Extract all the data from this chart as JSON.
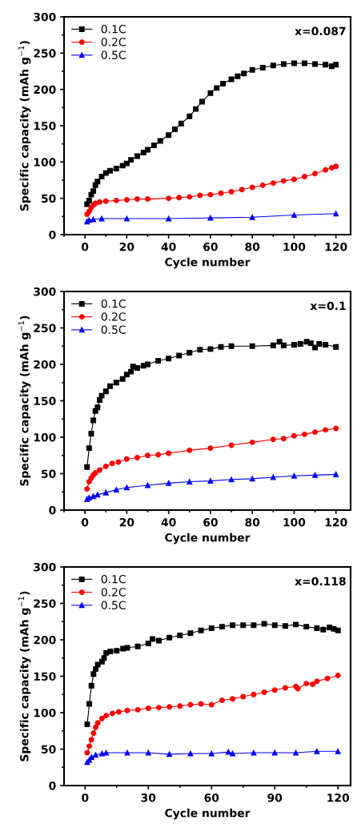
{
  "chart_data": [
    {
      "type": "line",
      "xlabel": "Cycle number",
      "ylabel": "Specific capacity (mAh g$^{−1}$)",
      "annotations": [
        "x=0.087"
      ],
      "xlim": [
        -10,
        127
      ],
      "ylim": [
        0,
        300
      ],
      "xticks": [
        0,
        20,
        40,
        60,
        80,
        100,
        120
      ],
      "yticks": [
        0,
        50,
        100,
        150,
        200,
        250,
        300
      ],
      "legend": "top left",
      "grid": false,
      "series": [
        {
          "name": "0.1C",
          "color": "#000000",
          "marker": "square",
          "x": [
            1,
            2,
            3,
            4,
            5,
            6,
            8,
            10,
            12,
            15,
            18,
            20,
            22,
            25,
            28,
            30,
            33,
            36,
            40,
            43,
            46,
            50,
            53,
            56,
            60,
            63,
            66,
            70,
            73,
            76,
            80,
            85,
            90,
            95,
            100,
            105,
            110,
            115,
            118,
            120
          ],
          "values": [
            42,
            47,
            55,
            60,
            68,
            73,
            80,
            85,
            88,
            91,
            95,
            98,
            103,
            108,
            113,
            117,
            123,
            129,
            137,
            145,
            153,
            163,
            173,
            183,
            195,
            202,
            208,
            214,
            218,
            222,
            227,
            230,
            233,
            235,
            236,
            236,
            235,
            234,
            232,
            234
          ]
        },
        {
          "name": "0.2C",
          "color": "#ff0000",
          "marker": "circle",
          "x": [
            1,
            2,
            3,
            4,
            5,
            7,
            10,
            15,
            20,
            25,
            30,
            40,
            45,
            50,
            55,
            60,
            65,
            70,
            75,
            80,
            85,
            90,
            95,
            100,
            105,
            110,
            115,
            118,
            120
          ],
          "values": [
            28,
            32,
            37,
            41,
            43,
            45,
            46,
            47,
            48,
            49,
            49,
            50,
            51,
            52,
            54,
            55,
            57,
            59,
            62,
            65,
            68,
            71,
            74,
            76,
            80,
            84,
            89,
            92,
            94
          ]
        },
        {
          "name": "0.5C",
          "color": "#0000ff",
          "marker": "triangle",
          "x": [
            1,
            2,
            4,
            8,
            20,
            40,
            60,
            80,
            100,
            120
          ],
          "values": [
            18,
            20,
            21,
            22,
            22,
            22,
            23,
            24,
            27,
            29
          ]
        }
      ]
    },
    {
      "type": "line",
      "xlabel": "Cycle number",
      "ylabel": "Specific capacity (mAh g$^{−1}$)",
      "annotations": [
        "x=0.1"
      ],
      "xlim": [
        -10,
        127
      ],
      "ylim": [
        0,
        300
      ],
      "xticks": [
        0,
        20,
        40,
        60,
        80,
        100,
        120
      ],
      "yticks": [
        0,
        50,
        100,
        150,
        200,
        250,
        300
      ],
      "legend": "top left",
      "grid": false,
      "series": [
        {
          "name": "0.1C",
          "color": "#000000",
          "marker": "square",
          "x": [
            1,
            2,
            3,
            4,
            5,
            6,
            7,
            8,
            10,
            12,
            15,
            18,
            20,
            22,
            23,
            25,
            28,
            30,
            35,
            40,
            45,
            50,
            55,
            60,
            65,
            70,
            80,
            90,
            93,
            95,
            100,
            103,
            106,
            108,
            110,
            112,
            115,
            120
          ],
          "values": [
            59,
            85,
            105,
            123,
            136,
            141,
            151,
            157,
            163,
            170,
            175,
            180,
            186,
            190,
            197,
            195,
            198,
            200,
            205,
            208,
            212,
            216,
            220,
            221,
            224,
            225,
            225,
            226,
            231,
            226,
            227,
            228,
            231,
            229,
            223,
            228,
            227,
            224
          ]
        },
        {
          "name": "0.2C",
          "color": "#ff0000",
          "marker": "circle",
          "x": [
            1,
            2,
            3,
            4,
            5,
            7,
            10,
            13,
            16,
            20,
            25,
            30,
            35,
            40,
            50,
            60,
            70,
            80,
            90,
            95,
            100,
            105,
            110,
            115,
            120
          ],
          "values": [
            29,
            39,
            44,
            48,
            51,
            55,
            60,
            64,
            66,
            70,
            72,
            75,
            76,
            78,
            82,
            85,
            89,
            93,
            97,
            98,
            102,
            104,
            107,
            110,
            112
          ]
        },
        {
          "name": "0.5C",
          "color": "#0000ff",
          "marker": "triangle",
          "x": [
            1,
            2,
            4,
            6,
            10,
            15,
            20,
            30,
            40,
            50,
            60,
            70,
            80,
            90,
            100,
            110,
            120
          ],
          "values": [
            15,
            17,
            19,
            21,
            24,
            28,
            31,
            34,
            37,
            39,
            40,
            42,
            43,
            45,
            47,
            48,
            49
          ]
        }
      ]
    },
    {
      "type": "line",
      "xlabel": "Cycle number",
      "ylabel": "Specific capacity (mAh g$^{−1}$)",
      "annotations": [
        "x=0.118"
      ],
      "xlim": [
        -10,
        126
      ],
      "ylim": [
        0,
        300
      ],
      "xticks": [
        0,
        30,
        60,
        90,
        120
      ],
      "yticks": [
        0,
        50,
        100,
        150,
        200,
        250,
        300
      ],
      "legend": "top left",
      "grid": false,
      "series": [
        {
          "name": "0.1C",
          "color": "#000000",
          "marker": "square",
          "x": [
            1,
            2,
            3,
            4,
            5,
            6,
            8,
            9,
            10,
            12,
            15,
            18,
            20,
            25,
            30,
            32,
            35,
            40,
            45,
            50,
            55,
            60,
            65,
            70,
            75,
            80,
            85,
            90,
            95,
            100,
            105,
            110,
            113,
            116,
            118,
            120
          ],
          "values": [
            84,
            112,
            137,
            153,
            160,
            166,
            170,
            175,
            182,
            184,
            185,
            188,
            189,
            191,
            195,
            201,
            199,
            203,
            206,
            209,
            213,
            216,
            218,
            220,
            220,
            220,
            222,
            220,
            219,
            221,
            218,
            216,
            214,
            217,
            215,
            213
          ]
        },
        {
          "name": "0.2C",
          "color": "#ff0000",
          "marker": "circle",
          "x": [
            1,
            2,
            3,
            4,
            5,
            6,
            8,
            10,
            13,
            16,
            20,
            25,
            30,
            35,
            40,
            45,
            50,
            55,
            60,
            65,
            70,
            75,
            80,
            85,
            90,
            95,
            100,
            101,
            105,
            108,
            110,
            115,
            120
          ],
          "values": [
            45,
            54,
            63,
            72,
            80,
            86,
            92,
            96,
            99,
            101,
            103,
            104,
            106,
            107,
            108,
            109,
            111,
            112,
            111,
            117,
            119,
            122,
            125,
            128,
            131,
            134,
            136,
            133,
            140,
            139,
            143,
            147,
            151
          ]
        },
        {
          "name": "0.5C",
          "color": "#0000ff",
          "marker": "triangle",
          "x": [
            1,
            2,
            3,
            5,
            8,
            10,
            20,
            30,
            40,
            50,
            60,
            68,
            70,
            80,
            90,
            100,
            110,
            120
          ],
          "values": [
            32,
            35,
            39,
            42,
            44,
            45,
            45,
            45,
            43,
            44,
            44,
            46,
            44,
            45,
            45,
            45,
            47,
            47
          ]
        }
      ]
    }
  ]
}
